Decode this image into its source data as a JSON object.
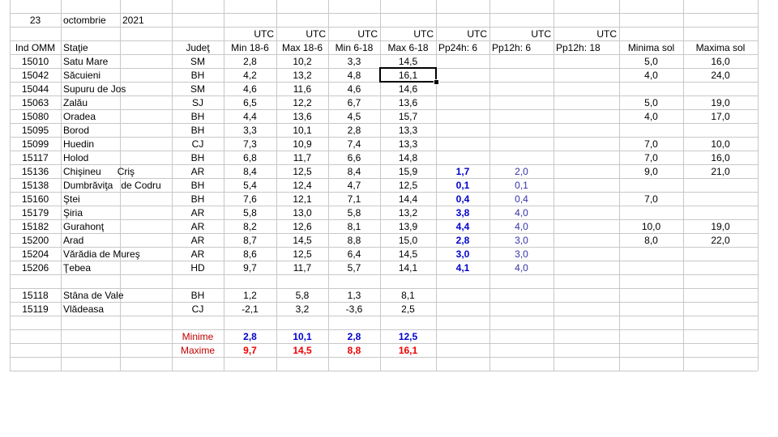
{
  "sheet": {
    "date": [
      "23",
      "octombrie",
      "2021"
    ],
    "utc": [
      "UTC",
      "UTC",
      "UTC",
      "UTC",
      "UTC",
      "UTC",
      "UTC"
    ],
    "headers": [
      "Ind OMM",
      "Staţie",
      null,
      "Judeţ",
      "Min 18-6",
      "Max 18-6",
      "Min 6-18",
      "Max 6-18",
      "Pp24h: 6",
      "Pp12h: 6",
      "Pp12h: 18",
      "Minima sol",
      "Maxima sol"
    ],
    "stations": [
      [
        "15010",
        "Satu Mare",
        null,
        "SM",
        "2,8",
        "10,2",
        "3,3",
        "14,5",
        null,
        null,
        null,
        "5,0",
        "16,0"
      ],
      [
        "15042",
        "Săcuieni",
        null,
        "BH",
        "4,2",
        "13,2",
        "4,8",
        "16,1",
        null,
        null,
        null,
        "4,0",
        "24,0"
      ],
      [
        "15044",
        "Supuru de Jos",
        null,
        "SM",
        "4,6",
        "11,6",
        "4,6",
        "14,6",
        null,
        null,
        null,
        null,
        null
      ],
      [
        "15063",
        "Zalău",
        null,
        "SJ",
        "6,5",
        "12,2",
        "6,7",
        "13,6",
        null,
        null,
        null,
        "5,0",
        "19,0"
      ],
      [
        "15080",
        "Oradea",
        null,
        "BH",
        "4,4",
        "13,6",
        "4,5",
        "15,7",
        null,
        null,
        null,
        "4,0",
        "17,0"
      ],
      [
        "15095",
        "Borod",
        null,
        "BH",
        "3,3",
        "10,1",
        "2,8",
        "13,3",
        null,
        null,
        null,
        null,
        null
      ],
      [
        "15099",
        "Huedin",
        null,
        "CJ",
        "7,3",
        "10,9",
        "7,4",
        "13,3",
        null,
        null,
        null,
        "7,0",
        "10,0"
      ],
      [
        "15117",
        "Holod",
        null,
        "BH",
        "6,8",
        "11,7",
        "6,6",
        "14,8",
        null,
        null,
        null,
        "7,0",
        "16,0"
      ],
      [
        "15136",
        "Chişineu      Criş",
        null,
        "AR",
        "8,4",
        "12,5",
        "8,4",
        "15,9",
        "1,7",
        "2,0",
        null,
        "9,0",
        "21,0"
      ],
      [
        "15138",
        "Dumbrăviţa   de Codru",
        null,
        "BH",
        "5,4",
        "12,4",
        "4,7",
        "12,5",
        "0,1",
        "0,1",
        null,
        null,
        null
      ],
      [
        "15160",
        "Ştei",
        null,
        "BH",
        "7,6",
        "12,1",
        "7,1",
        "14,4",
        "0,4",
        "0,4",
        null,
        "7,0",
        null
      ],
      [
        "15179",
        "Şiria",
        null,
        "AR",
        "5,8",
        "13,0",
        "5,8",
        "13,2",
        "3,8",
        "4,0",
        null,
        null,
        null
      ],
      [
        "15182",
        "Gurahonţ",
        null,
        "AR",
        "8,2",
        "12,6",
        "8,1",
        "13,9",
        "4,4",
        "4,0",
        null,
        "10,0",
        "19,0"
      ],
      [
        "15200",
        "Arad",
        null,
        "AR",
        "8,7",
        "14,5",
        "8,8",
        "15,0",
        "2,8",
        "3,0",
        null,
        "8,0",
        "22,0"
      ],
      [
        "15204",
        "Vărădia de Mureş",
        null,
        "AR",
        "8,6",
        "12,5",
        "6,4",
        "14,5",
        "3,0",
        "3,0",
        null,
        null,
        null
      ],
      [
        "15206",
        "Ţebea",
        null,
        "HD",
        "9,7",
        "11,7",
        "5,7",
        "14,1",
        "4,1",
        "4,0",
        null,
        null,
        null
      ]
    ],
    "mountain_stations": [
      [
        "15118",
        "Stâna de Vale",
        null,
        "BH",
        "1,2",
        "5,8",
        "1,3",
        "8,1",
        null,
        null,
        null,
        null,
        null
      ],
      [
        "15119",
        "Vlădeasa",
        null,
        "CJ",
        "-2,1",
        "3,2",
        "-3,6",
        "2,5",
        null,
        null,
        null,
        null,
        null
      ]
    ],
    "minime": {
      "label": "Minime",
      "values": [
        "2,8",
        "10,1",
        "2,8",
        "12,5"
      ]
    },
    "maxime": {
      "label": "Maxime",
      "values": [
        "9,7",
        "14,5",
        "8,8",
        "16,1"
      ]
    }
  }
}
